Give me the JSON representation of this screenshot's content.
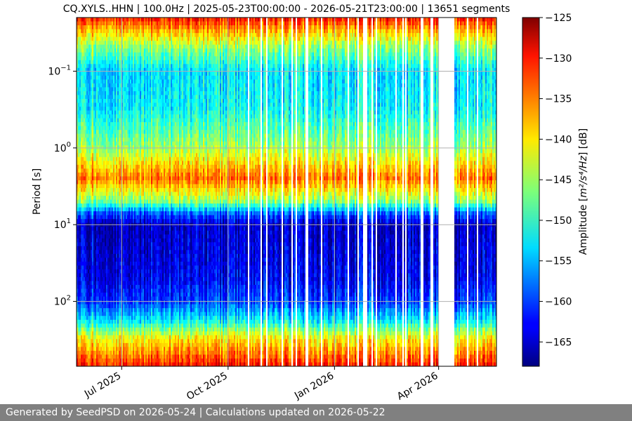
{
  "footer": {
    "text": "Generated by SeedPSD on 2026-05-24 | Calculations updated on 2026-05-22"
  },
  "chart_data": {
    "type": "heatmap",
    "title": "CQ.XYLS..HHN | 100.0Hz | 2025-05-23T00:00:00 - 2026-05-21T23:00:00 | 13651 segments",
    "xlabel": "",
    "ylabel": "Period [s]",
    "y_scale": "log",
    "y_inverted": true,
    "ylim": [
      0.02,
      700
    ],
    "x_range": [
      "2025-05-23",
      "2026-05-21"
    ],
    "x_ticks": [
      {
        "date": "2025-07-01",
        "label": "Jul 2025"
      },
      {
        "date": "2025-10-01",
        "label": "Oct 2025"
      },
      {
        "date": "2026-01-01",
        "label": "Jan 2026"
      },
      {
        "date": "2026-04-01",
        "label": "Apr 2026"
      }
    ],
    "y_ticks": [
      {
        "value": 0.1,
        "base": "10",
        "exp": "−1"
      },
      {
        "value": 1,
        "base": "10",
        "exp": "0"
      },
      {
        "value": 10,
        "base": "10",
        "exp": "1"
      },
      {
        "value": 100,
        "base": "10",
        "exp": "2"
      }
    ],
    "grid": true,
    "colorbar": {
      "label": "Amplitude [m²/s⁴/Hz] [dB]",
      "label_main": "Amplitude [",
      "label_math": "m²/s⁴/Hz",
      "label_end": "] [dB]",
      "min": -168,
      "max": -125,
      "ticks": [
        -125,
        -130,
        -135,
        -140,
        -145,
        -150,
        -155,
        -160,
        -165
      ],
      "tick_labels": [
        "−125",
        "−130",
        "−135",
        "−140",
        "−145",
        "−150",
        "−155",
        "−160",
        "−165"
      ],
      "colormap": "jet"
    },
    "period_profile_db": [
      {
        "period": 0.02,
        "db": -131
      },
      {
        "period": 0.03,
        "db": -138
      },
      {
        "period": 0.05,
        "db": -146
      },
      {
        "period": 0.1,
        "db": -153
      },
      {
        "period": 0.3,
        "db": -152
      },
      {
        "period": 1,
        "db": -145
      },
      {
        "period": 2.5,
        "db": -135
      },
      {
        "period": 5,
        "db": -146
      },
      {
        "period": 7,
        "db": -158
      },
      {
        "period": 10,
        "db": -165
      },
      {
        "period": 50,
        "db": -163
      },
      {
        "period": 100,
        "db": -160
      },
      {
        "period": 180,
        "db": -152
      },
      {
        "period": 300,
        "db": -141
      },
      {
        "period": 700,
        "db": -131
      }
    ],
    "no_data_gaps": [
      {
        "start": "2026-04-01",
        "end": "2026-04-15"
      }
    ]
  }
}
